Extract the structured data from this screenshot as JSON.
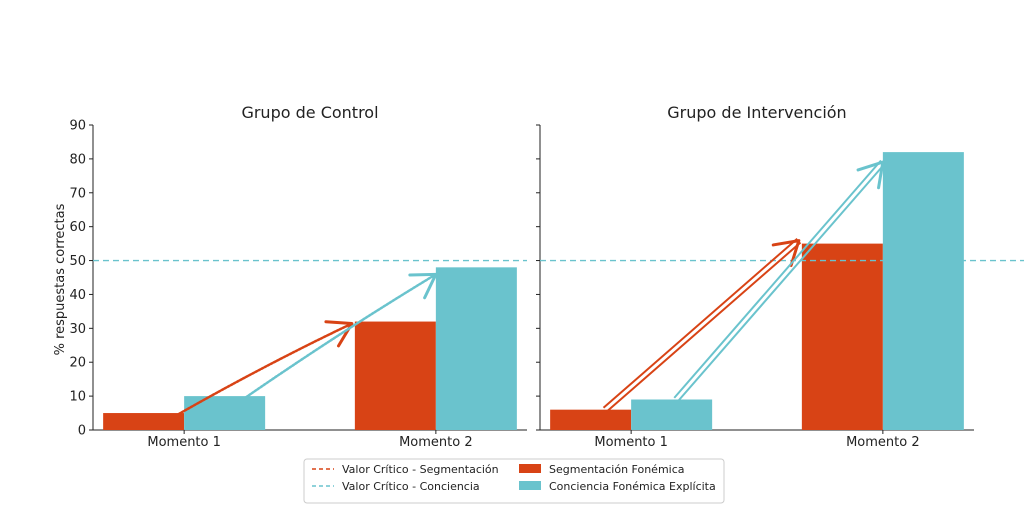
{
  "chart_data": [
    {
      "type": "bar",
      "title": "Grupo de Control",
      "ylabel": "% respuestas correctas",
      "xlabel": "",
      "categories": [
        "Momento 1",
        "Momento 2"
      ],
      "ylim": [
        0,
        90
      ],
      "yticks": [
        "0",
        "10",
        "20",
        "30",
        "40",
        "50",
        "60",
        "70",
        "80",
        "90"
      ],
      "series": [
        {
          "name": "Segmentación Fonémica",
          "values": [
            5,
            32
          ],
          "color": "#d84315"
        },
        {
          "name": "Conciencia Fonémica Explícita",
          "values": [
            10,
            48
          ],
          "color": "#6ac3cd"
        }
      ],
      "reference_value": 50,
      "arrows": [
        {
          "series": 0,
          "from": 0,
          "to": 1,
          "style": "sketch"
        },
        {
          "series": 1,
          "from": 0,
          "to": 1,
          "style": "sketch"
        }
      ]
    },
    {
      "type": "bar",
      "title": "Grupo de Intervención",
      "xlabel": "",
      "categories": [
        "Momento 1",
        "Momento 2"
      ],
      "ylim": [
        0,
        90
      ],
      "series": [
        {
          "name": "Segmentación Fonémica",
          "values": [
            6,
            55
          ],
          "color": "#d84315"
        },
        {
          "name": "Conciencia Fonémica Explícita",
          "values": [
            9,
            82
          ],
          "color": "#6ac3cd"
        }
      ],
      "reference_value": 50,
      "arrows": [
        {
          "series": 0,
          "from": 0,
          "to": 1,
          "style": "double"
        },
        {
          "series": 1,
          "from": 0,
          "to": 1,
          "style": "double"
        }
      ]
    }
  ],
  "legend": {
    "placement": "bottom-center",
    "items": [
      {
        "label": "Valor Crítico - Segmentación",
        "kind": "dashed-line",
        "color": "#d84315"
      },
      {
        "label": "Valor Crítico - Conciencia",
        "kind": "dashed-line",
        "color": "#6ac3cd"
      },
      {
        "label": "Segmentación Fonémica",
        "kind": "box",
        "color": "#d84315"
      },
      {
        "label": "Conciencia Fonémica Explícita",
        "kind": "box",
        "color": "#6ac3cd"
      }
    ]
  }
}
